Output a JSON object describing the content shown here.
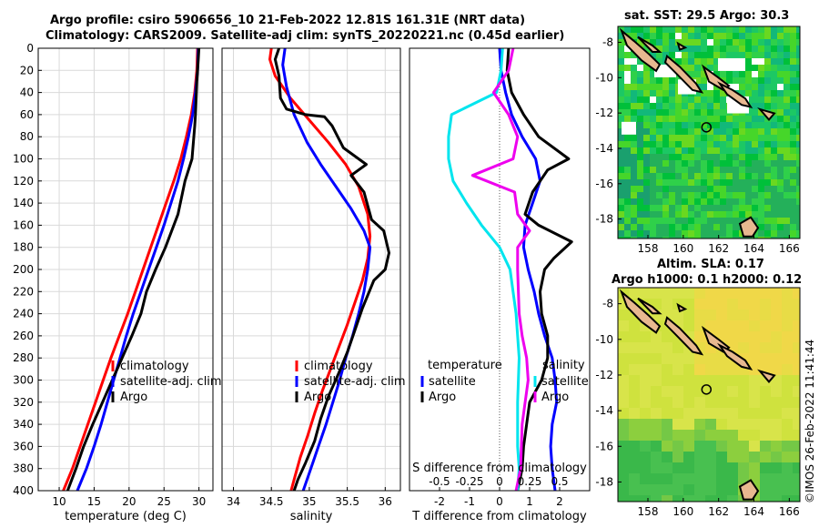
{
  "header": {
    "title_line1": "Argo profile: csiro 5906656_10 21-Feb-2022 12.81S 161.31E (NRT data)",
    "title_line2": "Climatology: CARS2009. Satellite-adj clim: synTS_20220221.nc (0.45d earlier)"
  },
  "colors": {
    "climatology": "#ff0000",
    "satellite": "#0000ff",
    "argo": "#000000",
    "sat_salinity": "#00e5ee",
    "argo_salinity_diff": "#ee00ee"
  },
  "chart_data": [
    {
      "type": "line",
      "id": "temperature",
      "xlabel": "temperature (deg C)",
      "xlim": [
        7,
        32
      ],
      "ylim": [
        0,
        400
      ],
      "y_reversed": true,
      "xticks": [
        10,
        15,
        20,
        25,
        30
      ],
      "yticks": [
        0,
        20,
        40,
        60,
        80,
        100,
        120,
        140,
        160,
        180,
        200,
        220,
        240,
        260,
        280,
        300,
        320,
        340,
        360,
        380,
        400
      ],
      "xgrid": true,
      "ygrid": true,
      "legend": [
        "climatology",
        "satellite-adj. clim",
        "Argo"
      ],
      "legend_position": "lower-right",
      "series": [
        {
          "name": "climatology",
          "color": "#ff0000",
          "points": [
            [
              29.8,
              0
            ],
            [
              29.7,
              20
            ],
            [
              29.4,
              40
            ],
            [
              28.9,
              60
            ],
            [
              28.2,
              80
            ],
            [
              27.4,
              100
            ],
            [
              26.4,
              120
            ],
            [
              25.3,
              140
            ],
            [
              24.2,
              160
            ],
            [
              23.1,
              180
            ],
            [
              22.0,
              200
            ],
            [
              20.9,
              220
            ],
            [
              19.8,
              240
            ],
            [
              18.6,
              260
            ],
            [
              17.4,
              280
            ],
            [
              16.3,
              300
            ],
            [
              15.2,
              320
            ],
            [
              14.1,
              340
            ],
            [
              13.0,
              360
            ],
            [
              11.9,
              380
            ],
            [
              10.6,
              400
            ]
          ]
        },
        {
          "name": "satellite-adj. clim",
          "color": "#0000ff",
          "points": [
            [
              29.9,
              0
            ],
            [
              29.8,
              20
            ],
            [
              29.5,
              40
            ],
            [
              29.1,
              60
            ],
            [
              28.5,
              80
            ],
            [
              27.8,
              100
            ],
            [
              27.0,
              120
            ],
            [
              26.0,
              140
            ],
            [
              25.0,
              160
            ],
            [
              23.9,
              180
            ],
            [
              22.8,
              200
            ],
            [
              21.7,
              220
            ],
            [
              20.6,
              240
            ],
            [
              19.6,
              260
            ],
            [
              18.7,
              280
            ],
            [
              17.8,
              300
            ],
            [
              16.9,
              320
            ],
            [
              16.0,
              340
            ],
            [
              15.0,
              360
            ],
            [
              13.9,
              380
            ],
            [
              12.6,
              400
            ]
          ]
        },
        {
          "name": "Argo",
          "color": "#000000",
          "points": [
            [
              30.0,
              0
            ],
            [
              29.9,
              10
            ],
            [
              29.7,
              30
            ],
            [
              29.5,
              60
            ],
            [
              29.4,
              70
            ],
            [
              29.0,
              100
            ],
            [
              28.0,
              120
            ],
            [
              27.0,
              150
            ],
            [
              25.2,
              180
            ],
            [
              23.8,
              200
            ],
            [
              22.5,
              220
            ],
            [
              21.7,
              240
            ],
            [
              20.4,
              260
            ],
            [
              19.0,
              280
            ],
            [
              17.6,
              300
            ],
            [
              16.2,
              320
            ],
            [
              14.8,
              340
            ],
            [
              13.5,
              360
            ],
            [
              12.4,
              380
            ],
            [
              11.2,
              400
            ]
          ]
        }
      ]
    },
    {
      "type": "line",
      "id": "salinity",
      "xlabel": "salinity",
      "xlim": [
        33.85,
        36.2
      ],
      "ylim": [
        0,
        400
      ],
      "y_reversed": true,
      "xticks": [
        34,
        34.5,
        35,
        35.5,
        36
      ],
      "yticks": [
        0,
        20,
        40,
        60,
        80,
        100,
        120,
        140,
        160,
        180,
        200,
        220,
        240,
        260,
        280,
        300,
        320,
        340,
        360,
        380,
        400
      ],
      "xgrid": true,
      "ygrid": true,
      "legend": [
        "climatology",
        "satellite-adj. clim",
        "Argo"
      ],
      "legend_position": "lower-right",
      "series": [
        {
          "name": "climatology",
          "color": "#ff0000",
          "points": [
            [
              34.5,
              0
            ],
            [
              34.48,
              10
            ],
            [
              34.55,
              25
            ],
            [
              34.75,
              45
            ],
            [
              35.0,
              65
            ],
            [
              35.25,
              85
            ],
            [
              35.48,
              105
            ],
            [
              35.65,
              125
            ],
            [
              35.77,
              150
            ],
            [
              35.8,
              170
            ],
            [
              35.77,
              190
            ],
            [
              35.7,
              210
            ],
            [
              35.6,
              230
            ],
            [
              35.5,
              250
            ],
            [
              35.39,
              270
            ],
            [
              35.28,
              290
            ],
            [
              35.17,
              310
            ],
            [
              35.07,
              330
            ],
            [
              34.98,
              350
            ],
            [
              34.88,
              370
            ],
            [
              34.8,
              390
            ],
            [
              34.76,
              400
            ]
          ]
        },
        {
          "name": "satellite-adj. clim",
          "color": "#0000ff",
          "points": [
            [
              34.68,
              0
            ],
            [
              34.65,
              15
            ],
            [
              34.7,
              35
            ],
            [
              34.8,
              60
            ],
            [
              34.97,
              85
            ],
            [
              35.15,
              105
            ],
            [
              35.35,
              125
            ],
            [
              35.55,
              145
            ],
            [
              35.72,
              165
            ],
            [
              35.8,
              180
            ],
            [
              35.77,
              200
            ],
            [
              35.72,
              220
            ],
            [
              35.65,
              240
            ],
            [
              35.57,
              260
            ],
            [
              35.48,
              280
            ],
            [
              35.4,
              300
            ],
            [
              35.31,
              320
            ],
            [
              35.22,
              340
            ],
            [
              35.12,
              360
            ],
            [
              35.02,
              380
            ],
            [
              34.92,
              400
            ]
          ]
        },
        {
          "name": "Argo",
          "color": "#000000",
          "points": [
            [
              34.6,
              0
            ],
            [
              34.55,
              10
            ],
            [
              34.6,
              25
            ],
            [
              34.62,
              45
            ],
            [
              34.7,
              55
            ],
            [
              34.95,
              60
            ],
            [
              35.2,
              62
            ],
            [
              35.3,
              70
            ],
            [
              35.45,
              90
            ],
            [
              35.75,
              105
            ],
            [
              35.65,
              110
            ],
            [
              35.55,
              115
            ],
            [
              35.72,
              130
            ],
            [
              35.82,
              155
            ],
            [
              35.98,
              165
            ],
            [
              36.05,
              185
            ],
            [
              36.0,
              200
            ],
            [
              35.85,
              210
            ],
            [
              35.7,
              235
            ],
            [
              35.6,
              255
            ],
            [
              35.5,
              275
            ],
            [
              35.38,
              295
            ],
            [
              35.25,
              315
            ],
            [
              35.15,
              335
            ],
            [
              35.07,
              355
            ],
            [
              34.95,
              375
            ],
            [
              34.85,
              390
            ],
            [
              34.8,
              400
            ]
          ]
        }
      ]
    },
    {
      "type": "line",
      "id": "difference",
      "xlabel": "T difference from climatology",
      "xlabel_top": "S difference from climatology",
      "xlim": [
        -3,
        3
      ],
      "ylim": [
        0,
        400
      ],
      "y_reversed": true,
      "xticks": [
        -2,
        -1,
        0,
        1,
        2
      ],
      "xticks_salinity": [
        "-0.5",
        "-0.25",
        "0",
        "0.25",
        "0.5"
      ],
      "zero_line": true,
      "legend_left_title": "temperature",
      "legend_right_title": "salinity",
      "legend_left": [
        "satellite",
        "Argo"
      ],
      "legend_right": [
        "satellite",
        "Argo"
      ],
      "legend_position": "lower-center",
      "series": [
        {
          "name": "T satellite",
          "color": "#0000ff",
          "points": [
            [
              0,
              0
            ],
            [
              0.05,
              20
            ],
            [
              0.2,
              40
            ],
            [
              0.4,
              60
            ],
            [
              0.75,
              80
            ],
            [
              1.2,
              100
            ],
            [
              1.35,
              120
            ],
            [
              1.1,
              140
            ],
            [
              0.85,
              160
            ],
            [
              0.8,
              180
            ],
            [
              0.95,
              200
            ],
            [
              1.15,
              220
            ],
            [
              1.3,
              240
            ],
            [
              1.5,
              260
            ],
            [
              1.75,
              280
            ],
            [
              1.85,
              300
            ],
            [
              1.9,
              320
            ],
            [
              1.75,
              340
            ],
            [
              1.7,
              360
            ],
            [
              1.75,
              380
            ],
            [
              1.85,
              400
            ]
          ]
        },
        {
          "name": "T Argo",
          "color": "#000000",
          "points": [
            [
              0.3,
              0
            ],
            [
              0.25,
              20
            ],
            [
              0.4,
              40
            ],
            [
              0.8,
              60
            ],
            [
              1.3,
              80
            ],
            [
              2.3,
              100
            ],
            [
              1.6,
              110
            ],
            [
              1.1,
              130
            ],
            [
              0.85,
              150
            ],
            [
              1.3,
              160
            ],
            [
              2.4,
              175
            ],
            [
              1.8,
              190
            ],
            [
              1.5,
              200
            ],
            [
              1.35,
              220
            ],
            [
              1.4,
              240
            ],
            [
              1.6,
              260
            ],
            [
              1.6,
              280
            ],
            [
              1.4,
              300
            ],
            [
              1.0,
              320
            ],
            [
              0.9,
              340
            ],
            [
              0.8,
              360
            ],
            [
              0.75,
              380
            ],
            [
              0.6,
              400
            ]
          ]
        },
        {
          "name": "S satellite",
          "color": "#00e5ee",
          "points": [
            [
              0.1,
              0
            ],
            [
              0.05,
              20
            ],
            [
              -0.1,
              40
            ],
            [
              -1.6,
              60
            ],
            [
              -1.7,
              80
            ],
            [
              -1.7,
              100
            ],
            [
              -1.55,
              120
            ],
            [
              -1.1,
              140
            ],
            [
              -0.6,
              160
            ],
            [
              0.0,
              180
            ],
            [
              0.35,
              200
            ],
            [
              0.55,
              240
            ],
            [
              0.65,
              280
            ],
            [
              0.6,
              320
            ],
            [
              0.6,
              360
            ],
            [
              0.65,
              380
            ],
            [
              0.6,
              400
            ]
          ]
        },
        {
          "name": "S Argo",
          "color": "#ee00ee",
          "points": [
            [
              0.45,
              0
            ],
            [
              0.3,
              20
            ],
            [
              -0.2,
              40
            ],
            [
              0.3,
              60
            ],
            [
              0.6,
              80
            ],
            [
              0.45,
              100
            ],
            [
              -0.9,
              115
            ],
            [
              0.5,
              130
            ],
            [
              0.6,
              150
            ],
            [
              1.0,
              165
            ],
            [
              0.6,
              180
            ],
            [
              0.6,
              200
            ],
            [
              0.65,
              240
            ],
            [
              0.75,
              260
            ],
            [
              0.9,
              280
            ],
            [
              0.95,
              300
            ],
            [
              0.75,
              340
            ],
            [
              0.7,
              380
            ],
            [
              0.55,
              400
            ]
          ]
        }
      ]
    },
    {
      "type": "heatmap",
      "id": "sst_map",
      "title": "sat. SST: 29.5 Argo: 30.3",
      "xticks": [
        "158",
        "160",
        "162",
        "164",
        "166"
      ],
      "yticks": [
        "-8",
        "-10",
        "-12",
        "-14",
        "-16",
        "-18"
      ],
      "xlim": [
        156.3,
        166.6
      ],
      "ylim": [
        -19.1,
        -7.1
      ],
      "argo_position": {
        "lon": 161.31,
        "lat": -12.81
      }
    },
    {
      "type": "heatmap",
      "id": "sla_map",
      "title_line1": "Altim. SLA: 0.17",
      "title_line2": "Argo h1000: 0.1 h2000: 0.12",
      "xticks": [
        "158",
        "160",
        "162",
        "164",
        "166"
      ],
      "yticks": [
        "-8",
        "-10",
        "-12",
        "-14",
        "-16",
        "-18"
      ],
      "xlim": [
        156.3,
        166.6
      ],
      "ylim": [
        -19.1,
        -7.1
      ],
      "argo_position": {
        "lon": 161.31,
        "lat": -12.81
      }
    }
  ],
  "footer": {
    "stamp": "©IMOS 26-Feb-2022 11:41:44"
  }
}
